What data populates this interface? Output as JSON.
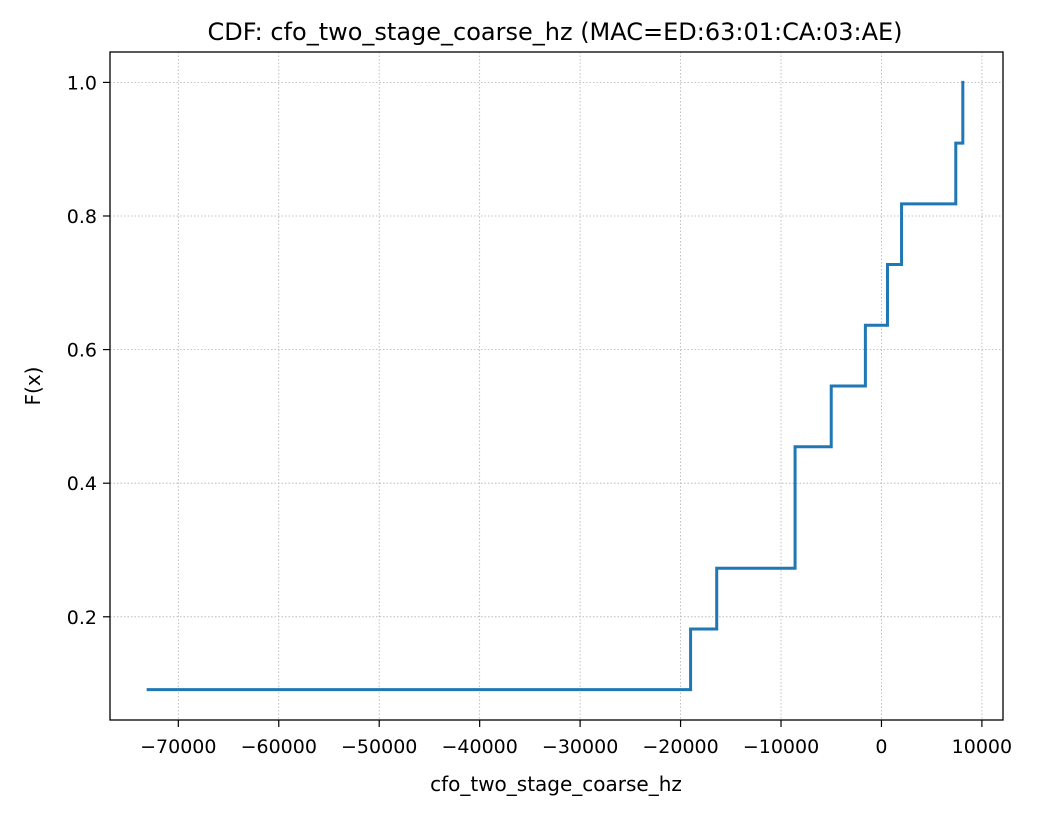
{
  "chart_data": {
    "type": "line",
    "drawstyle": "steps-post",
    "title": "CDF: cfo_two_stage_coarse_hz (MAC=ED:63:01:CA:03:AE)",
    "xlabel": "cfo_two_stage_coarse_hz",
    "ylabel": "F(x)",
    "xlim": [
      -76800,
      12100
    ],
    "ylim": [
      0.0455,
      1.0455
    ],
    "grid": true,
    "legend": "none",
    "x_ticks": [
      -70000,
      -60000,
      -50000,
      -40000,
      -30000,
      -20000,
      -10000,
      0,
      10000
    ],
    "x_tick_labels": [
      "−70000",
      "−60000",
      "−50000",
      "−40000",
      "−30000",
      "−20000",
      "−10000",
      "0",
      "10000"
    ],
    "y_ticks": [
      0.2,
      0.4,
      0.6,
      0.8,
      1.0
    ],
    "y_tick_labels": [
      "0.2",
      "0.4",
      "0.6",
      "0.8",
      "1.0"
    ],
    "series": [
      {
        "color": "#1f77b4",
        "x": [
          -73000,
          -19000,
          -16400,
          -8600,
          -5000,
          -1600,
          600,
          2000,
          7400,
          8100
        ],
        "y": [
          0.0909,
          0.1818,
          0.2727,
          0.4545,
          0.5455,
          0.6364,
          0.7273,
          0.8182,
          0.9091,
          1.0
        ]
      }
    ]
  }
}
